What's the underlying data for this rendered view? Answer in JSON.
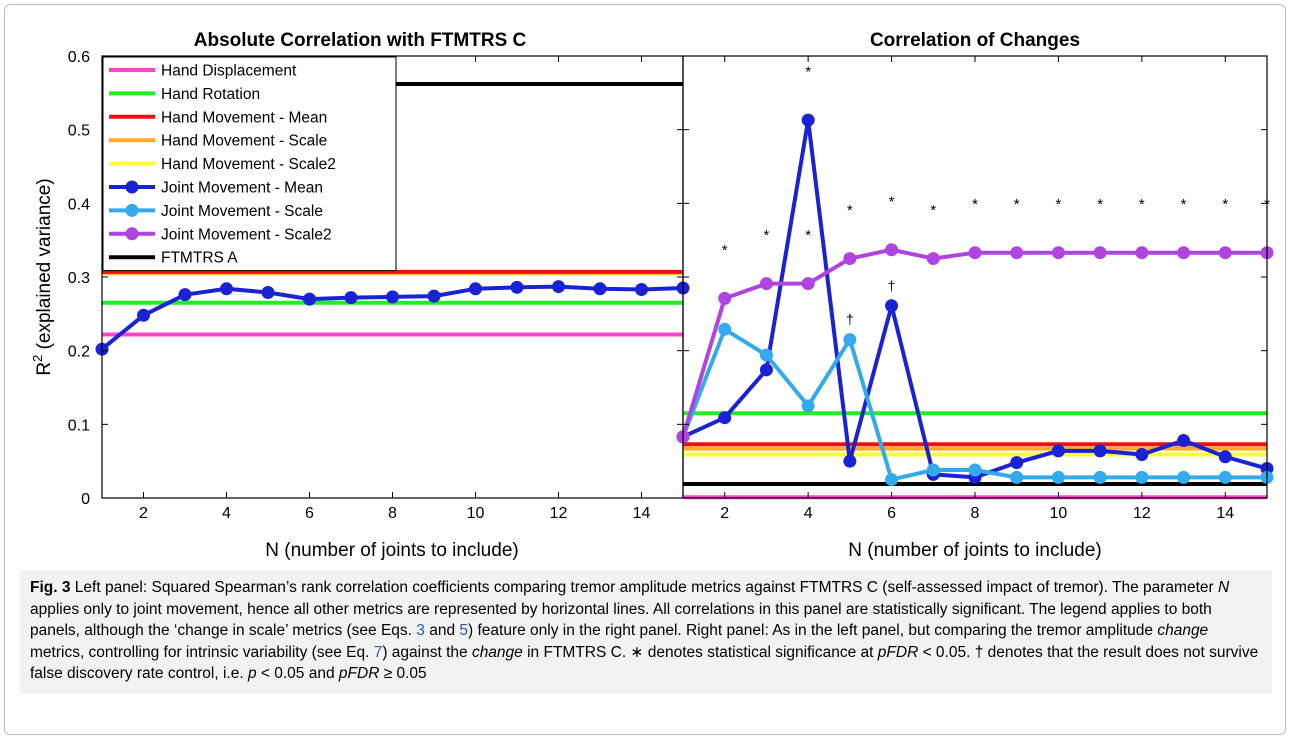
{
  "chart_data": [
    {
      "type": "line",
      "title": "Absolute Correlation with FTMTRS C",
      "xlabel": "N (number of joints to include)",
      "ylabel": "R",
      "ylabel_sup": "2",
      "ylabel_rest": " (explained variance)",
      "xlim": [
        1,
        15
      ],
      "ylim": [
        0,
        0.6
      ],
      "xticks": [
        2,
        4,
        6,
        8,
        10,
        12,
        14
      ],
      "xtick_labels": [
        "2",
        "4",
        "6",
        "8",
        "10",
        "12",
        "14"
      ],
      "yticks": [
        0,
        0.1,
        0.2,
        0.3,
        0.4,
        0.5,
        0.6
      ],
      "ytick_labels": [
        "0",
        "0.1",
        "0.2",
        "0.3",
        "0.4",
        "0.5",
        "0.6"
      ],
      "legend": "top-left",
      "hlines": [
        {
          "name": "Hand Displacement",
          "color": "#ff44cc",
          "value": 0.222
        },
        {
          "name": "Hand Rotation",
          "color": "#22ee22",
          "value": 0.265
        },
        {
          "name": "Hand Movement - Scale2",
          "color": "#ffff33",
          "value": 0.305
        },
        {
          "name": "Hand Movement - Scale",
          "color": "#ffaa22",
          "value": 0.306
        },
        {
          "name": "Hand Movement - Mean",
          "color": "#ee1111",
          "value": 0.307
        },
        {
          "name": "FTMTRS A",
          "color": "#000000",
          "value": 0.562
        }
      ],
      "series": [
        {
          "name": "Joint Movement - Mean",
          "color": "#1a22d6",
          "x": [
            1,
            2,
            3,
            4,
            5,
            6,
            7,
            8,
            9,
            10,
            11,
            12,
            13,
            14,
            15
          ],
          "values": [
            0.202,
            0.248,
            0.276,
            0.284,
            0.279,
            0.27,
            0.272,
            0.273,
            0.274,
            0.284,
            0.286,
            0.287,
            0.284,
            0.283,
            0.285
          ]
        }
      ]
    },
    {
      "type": "line",
      "title": "Correlation of Changes",
      "xlabel": "N (number of joints to include)",
      "xlim": [
        1,
        15
      ],
      "ylim": [
        0,
        0.6
      ],
      "xticks": [
        2,
        4,
        6,
        8,
        10,
        12,
        14
      ],
      "xtick_labels": [
        "2",
        "4",
        "6",
        "8",
        "10",
        "12",
        "14"
      ],
      "yticks": [
        0,
        0.1,
        0.2,
        0.3,
        0.4,
        0.5,
        0.6
      ],
      "hlines": [
        {
          "name": "Hand Rotation",
          "color": "#22ee22",
          "value": 0.115
        },
        {
          "name": "Hand Movement - Mean",
          "color": "#ee1111",
          "value": 0.073
        },
        {
          "name": "Hand Movement - Scale",
          "color": "#ffaa22",
          "value": 0.067
        },
        {
          "name": "Hand Movement - Scale2",
          "color": "#ffff33",
          "value": 0.059
        },
        {
          "name": "FTMTRS A",
          "color": "#000000",
          "value": 0.019
        },
        {
          "name": "Hand Displacement",
          "color": "#ff44cc",
          "value": 0.001
        }
      ],
      "series": [
        {
          "name": "Joint Movement - Mean",
          "color": "#1a22d6",
          "x": [
            1,
            2,
            3,
            4,
            5,
            6,
            7,
            8,
            9,
            10,
            11,
            12,
            13,
            14,
            15
          ],
          "values": [
            0.083,
            0.109,
            0.174,
            0.513,
            0.05,
            0.261,
            0.032,
            0.028,
            0.048,
            0.064,
            0.064,
            0.059,
            0.078,
            0.056,
            0.04
          ]
        },
        {
          "name": "Joint Movement - Scale",
          "color": "#33aaee",
          "x": [
            1,
            2,
            3,
            4,
            5,
            6,
            7,
            8,
            9,
            10,
            11,
            12,
            13,
            14,
            15
          ],
          "values": [
            0.083,
            0.229,
            0.194,
            0.125,
            0.215,
            0.025,
            0.038,
            0.038,
            0.028,
            0.028,
            0.028,
            0.028,
            0.028,
            0.028,
            0.028
          ]
        },
        {
          "name": "Joint Movement - Scale2",
          "color": "#b044e0",
          "x": [
            1,
            2,
            3,
            4,
            5,
            6,
            7,
            8,
            9,
            10,
            11,
            12,
            13,
            14,
            15
          ],
          "values": [
            0.083,
            0.271,
            0.291,
            0.291,
            0.325,
            0.337,
            0.325,
            0.333,
            0.333,
            0.333,
            0.333,
            0.333,
            0.333,
            0.333,
            0.333
          ]
        }
      ],
      "annotations": [
        {
          "text": "*",
          "x": 2,
          "y": 0.33
        },
        {
          "text": "*",
          "x": 3,
          "y": 0.35
        },
        {
          "text": "*",
          "x": 4,
          "y": 0.35
        },
        {
          "text": "*",
          "x": 4,
          "y": 0.572
        },
        {
          "text": "*",
          "x": 5,
          "y": 0.384
        },
        {
          "text": "*",
          "x": 6,
          "y": 0.396
        },
        {
          "text": "*",
          "x": 7,
          "y": 0.384
        },
        {
          "text": "*",
          "x": 8,
          "y": 0.392
        },
        {
          "text": "*",
          "x": 9,
          "y": 0.392
        },
        {
          "text": "*",
          "x": 10,
          "y": 0.392
        },
        {
          "text": "*",
          "x": 11,
          "y": 0.392
        },
        {
          "text": "*",
          "x": 12,
          "y": 0.392
        },
        {
          "text": "*",
          "x": 13,
          "y": 0.392
        },
        {
          "text": "*",
          "x": 14,
          "y": 0.392
        },
        {
          "text": "*",
          "x": 15,
          "y": 0.392
        },
        {
          "text": "†",
          "x": 5,
          "y": 0.236
        },
        {
          "text": "†",
          "x": 6,
          "y": 0.282
        }
      ]
    }
  ],
  "legend": {
    "items": [
      {
        "label": "Hand Displacement",
        "color": "#ff44cc",
        "marker": false
      },
      {
        "label": "Hand Rotation",
        "color": "#22ee22",
        "marker": false
      },
      {
        "label": "Hand Movement - Mean",
        "color": "#ee1111",
        "marker": false
      },
      {
        "label": "Hand Movement - Scale",
        "color": "#ffaa22",
        "marker": false
      },
      {
        "label": "Hand Movement - Scale2",
        "color": "#ffff33",
        "marker": false
      },
      {
        "label": "Joint Movement - Mean",
        "color": "#1a22d6",
        "marker": true
      },
      {
        "label": "Joint Movement - Scale",
        "color": "#33aaee",
        "marker": true
      },
      {
        "label": "Joint Movement - Scale2",
        "color": "#b044e0",
        "marker": true
      },
      {
        "label": "FTMTRS A",
        "color": "#000000",
        "marker": false
      }
    ]
  },
  "caption": {
    "fig_label": "Fig. 3",
    "t1": " Left panel: Squared Spearman’s rank correlation coefficients comparing tremor amplitude metrics against FTMTRS C (self-assessed impact of tremor). The parameter ",
    "n_var": "N",
    "t2": " applies only to joint movement, hence all other metrics are represented by horizontal lines. All correlations in this panel are statistically significant. The legend applies to both panels, although the ‘change in scale’ metrics (see Eqs. ",
    "ref3": "3",
    "t3": " and ",
    "ref5": "5",
    "t4": ") feature only in the right panel. Right panel: As in the left panel, but comparing the tremor amplitude ",
    "change1": "change",
    "t5": " metrics, controlling for intrinsic variability (see Eq. ",
    "ref7": "7",
    "t6": ") against the ",
    "change2": "change",
    "t7": " in FTMTRS C. ∗ denotes statistical significance at ",
    "pfdr1": "pFDR",
    "t8": " < 0.05. † denotes that the result does not survive false discovery rate control, i.e. ",
    "p_var": "p",
    "t9": " < 0.05 and ",
    "pfdr2": "pFDR",
    "t10": " ≥ 0.05"
  }
}
